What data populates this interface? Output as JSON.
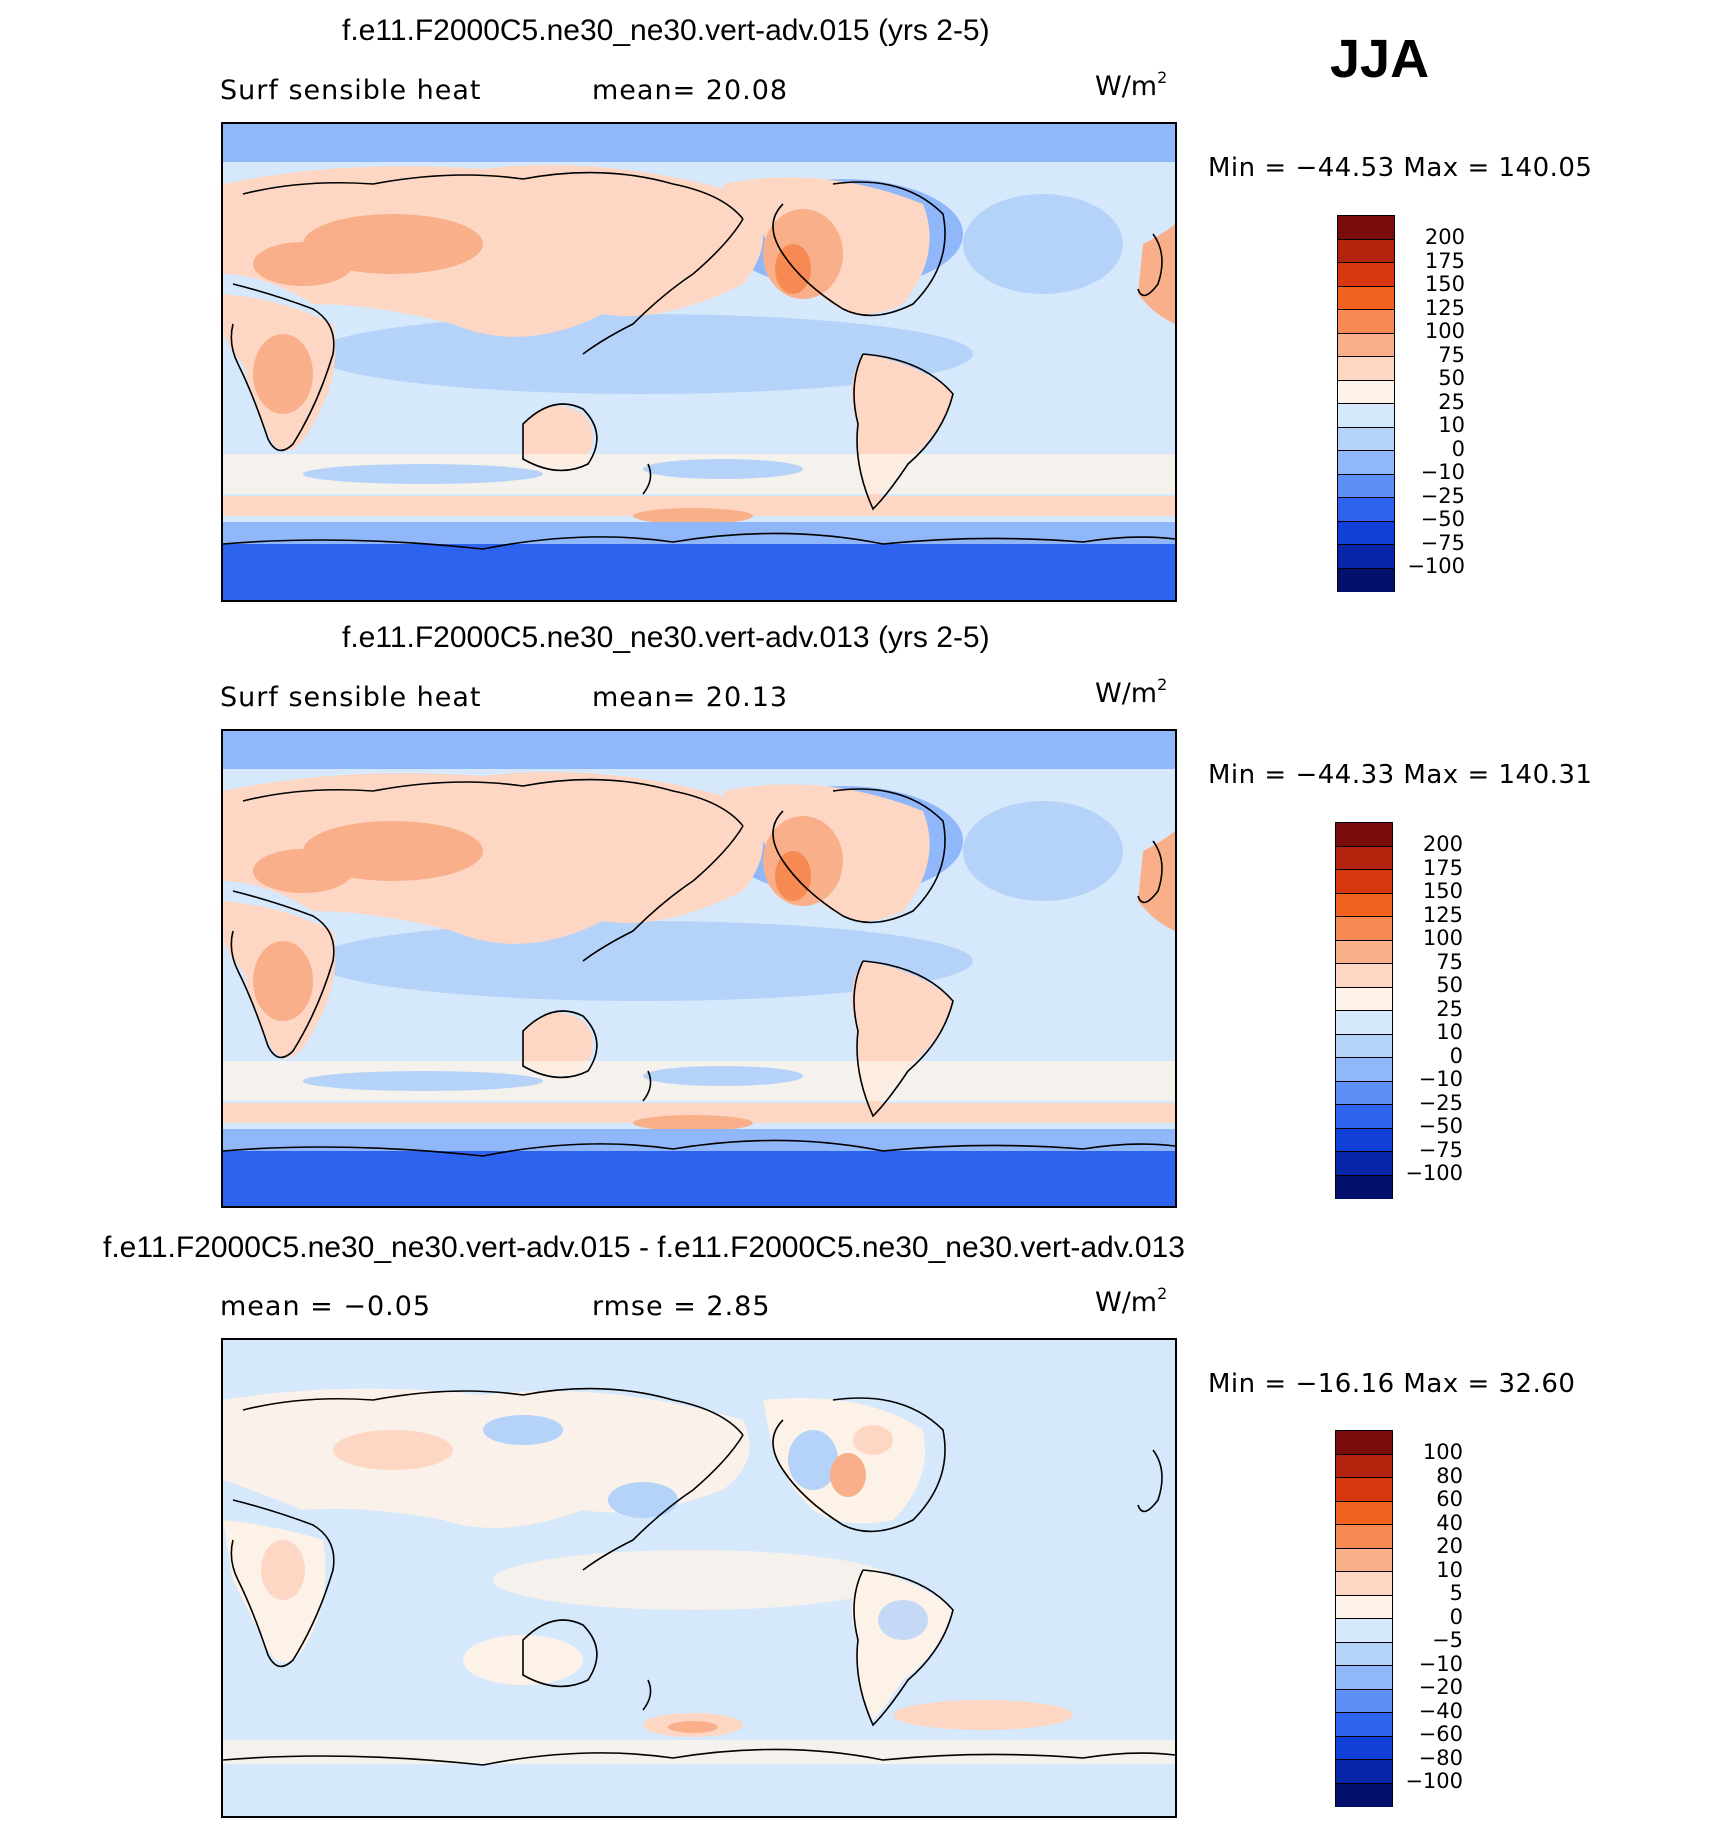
{
  "season": "JJA",
  "panels": [
    {
      "title": "f.e11.F2000C5.ne30_ne30.vert-adv.015 (yrs 2-5)",
      "left_label": "Surf  sensible  heat",
      "mid_label": "mean=  20.08",
      "units_base": "W/m",
      "units_exp": "2",
      "minmax": "Min  =  −44.53  Max  =  140.05",
      "colorbar": {
        "colors": [
          "#7a0c0c",
          "#b3230d",
          "#d9380f",
          "#f0621e",
          "#f78a52",
          "#f9b08a",
          "#fdd7c4",
          "#fdf2e8",
          "#d6e8fb",
          "#b5d2f9",
          "#8fb7f9",
          "#5d90f6",
          "#2e63ef",
          "#1140d8",
          "#0725a6",
          "#020f6b"
        ],
        "labels": [
          "200",
          "175",
          "150",
          "125",
          "100",
          "75",
          "50",
          "25",
          "10",
          "0",
          "−10",
          "−25",
          "−50",
          "−75",
          "−100"
        ]
      }
    },
    {
      "title": "f.e11.F2000C5.ne30_ne30.vert-adv.013 (yrs 2-5)",
      "left_label": "Surf  sensible  heat",
      "mid_label": "mean=  20.13",
      "units_base": "W/m",
      "units_exp": "2",
      "minmax": "Min  =  −44.33  Max  =  140.31",
      "colorbar": {
        "colors": [
          "#7a0c0c",
          "#b3230d",
          "#d9380f",
          "#f0621e",
          "#f78a52",
          "#f9b08a",
          "#fdd7c4",
          "#fdf2e8",
          "#d6e8fb",
          "#b5d2f9",
          "#8fb7f9",
          "#5d90f6",
          "#2e63ef",
          "#1140d8",
          "#0725a6",
          "#020f6b"
        ],
        "labels": [
          "200",
          "175",
          "150",
          "125",
          "100",
          "75",
          "50",
          "25",
          "10",
          "0",
          "−10",
          "−25",
          "−50",
          "−75",
          "−100"
        ]
      }
    },
    {
      "title": "f.e11.F2000C5.ne30_ne30.vert-adv.015 - f.e11.F2000C5.ne30_ne30.vert-adv.013",
      "left_label": "mean  =    −0.05",
      "mid_label": "rmse  =     2.85",
      "units_base": "W/m",
      "units_exp": "2",
      "minmax": "Min  =  −16.16  Max  =    32.60",
      "colorbar": {
        "colors": [
          "#7a0c0c",
          "#b3230d",
          "#d9380f",
          "#f0621e",
          "#f78a52",
          "#f9b08a",
          "#fdd7c4",
          "#fdf2e8",
          "#d6e8fb",
          "#b5d2f9",
          "#8fb7f9",
          "#5d90f6",
          "#2e63ef",
          "#1140d8",
          "#0725a6",
          "#020f6b"
        ],
        "labels": [
          "100",
          "80",
          "60",
          "40",
          "20",
          "10",
          "5",
          "0",
          "−5",
          "−10",
          "−20",
          "−40",
          "−60",
          "−80",
          "−100"
        ]
      }
    }
  ]
}
